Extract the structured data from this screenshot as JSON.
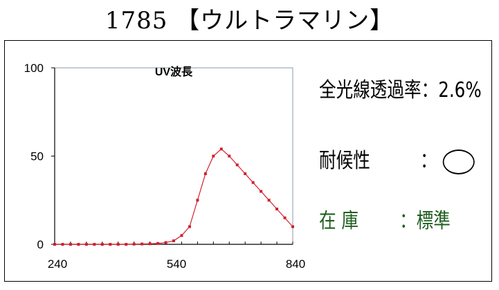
{
  "header": {
    "title": "1785 【ウルトラマリン】"
  },
  "info": {
    "transmittance_label": "全光線透過率",
    "transmittance_value": "：2.6%",
    "weather_label": "耐候性",
    "weather_sep": "：",
    "stock_label": "在 庫",
    "stock_value": "：標準"
  },
  "chart_data": {
    "type": "line",
    "title": "UV波長",
    "xlabel": "",
    "ylabel": "",
    "xlim": [
      240,
      840
    ],
    "ylim": [
      0,
      100
    ],
    "x_ticks": [
      "240",
      "540",
      "840"
    ],
    "y_ticks": [
      "0",
      "50",
      "100"
    ],
    "grid": false,
    "series": [
      {
        "color": "#d0202e",
        "x": [
          240,
          260,
          280,
          300,
          320,
          340,
          360,
          380,
          400,
          420,
          440,
          460,
          480,
          500,
          520,
          540,
          560,
          580,
          600,
          620,
          640,
          660,
          680,
          700,
          720,
          740,
          760,
          780,
          800,
          820,
          840
        ],
        "y": [
          0,
          0,
          0,
          0,
          0,
          0,
          0,
          0,
          0,
          0,
          0.1,
          0.2,
          0.3,
          0.5,
          1,
          2,
          5,
          10,
          25,
          40,
          50,
          54,
          50,
          45,
          40,
          35,
          30,
          25,
          20,
          15,
          10
        ]
      }
    ]
  }
}
